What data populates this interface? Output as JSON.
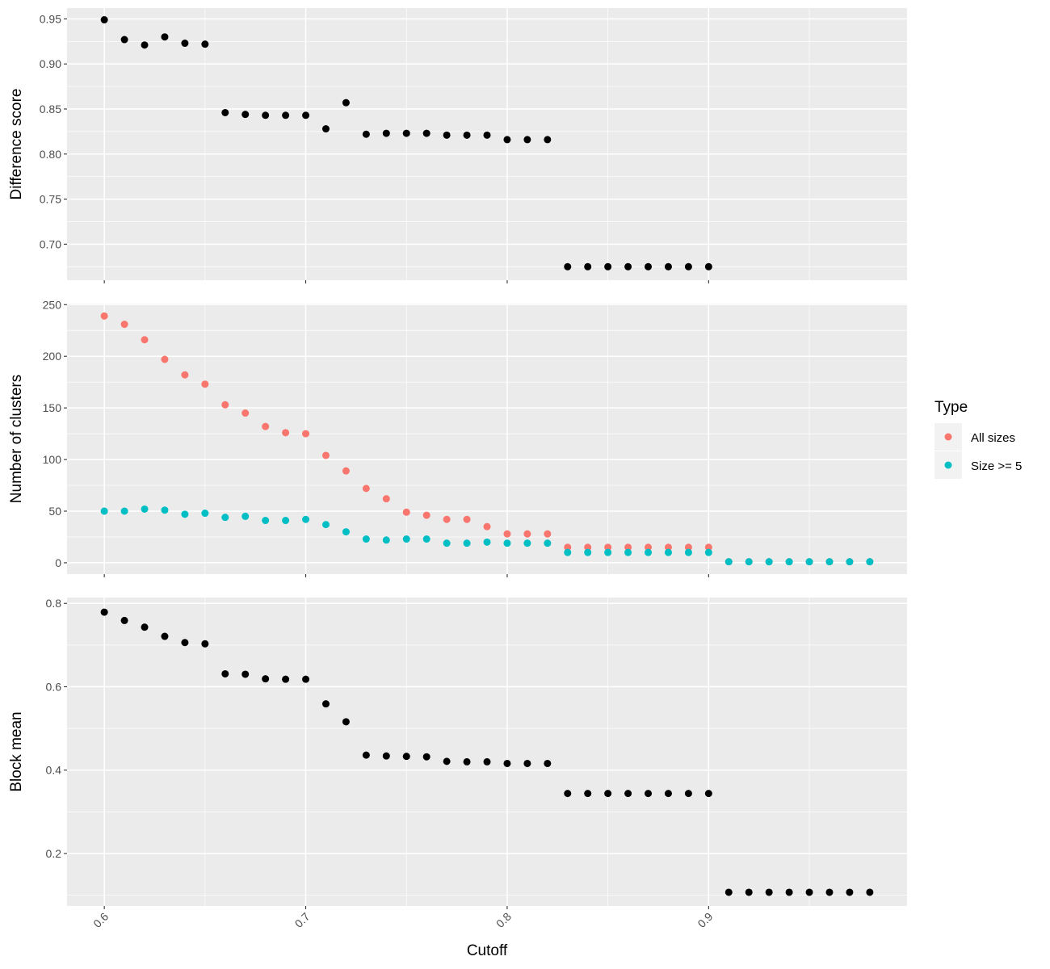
{
  "chart_data": {
    "type": "scatter",
    "xlabel": "Cutoff",
    "x_ticks": [
      "0.6",
      "0.7",
      "0.8",
      "0.9"
    ],
    "xlim": [
      0.5815,
      0.9985
    ],
    "panels": [
      {
        "ylabel": "Difference score",
        "ylim": [
          0.66,
          0.962
        ],
        "y_ticks": [
          "0.70",
          "0.75",
          "0.80",
          "0.85",
          "0.90",
          "0.95"
        ],
        "series": [
          {
            "color": "#000000",
            "x": [
              0.6,
              0.61,
              0.62,
              0.63,
              0.64,
              0.65,
              0.66,
              0.67,
              0.68,
              0.69,
              0.7,
              0.71,
              0.72,
              0.73,
              0.74,
              0.75,
              0.76,
              0.77,
              0.78,
              0.79,
              0.8,
              0.81,
              0.82,
              0.83,
              0.84,
              0.85,
              0.86,
              0.87,
              0.88,
              0.89,
              0.9
            ],
            "y": [
              0.949,
              0.927,
              0.921,
              0.93,
              0.923,
              0.922,
              0.846,
              0.844,
              0.843,
              0.843,
              0.843,
              0.828,
              0.857,
              0.822,
              0.823,
              0.823,
              0.823,
              0.821,
              0.821,
              0.821,
              0.816,
              0.816,
              0.816,
              0.675,
              0.675,
              0.675,
              0.675,
              0.675,
              0.675,
              0.675,
              0.675
            ]
          }
        ]
      },
      {
        "ylabel": "Number of clusters",
        "ylim": [
          -11,
          251
        ],
        "y_ticks": [
          "0",
          "50",
          "100",
          "150",
          "200",
          "250"
        ],
        "legend": {
          "title": "Type",
          "position": "right",
          "entries": [
            {
              "label": "All sizes",
              "color": "#F8766D"
            },
            {
              "label": "Size >= 5",
              "color": "#00BFC4"
            }
          ]
        },
        "series": [
          {
            "name": "All sizes",
            "color": "#F8766D",
            "x": [
              0.6,
              0.61,
              0.62,
              0.63,
              0.64,
              0.65,
              0.66,
              0.67,
              0.68,
              0.69,
              0.7,
              0.71,
              0.72,
              0.73,
              0.74,
              0.75,
              0.76,
              0.77,
              0.78,
              0.79,
              0.8,
              0.81,
              0.82,
              0.83,
              0.84,
              0.85,
              0.86,
              0.87,
              0.88,
              0.89,
              0.9,
              0.91,
              0.92,
              0.93,
              0.94,
              0.95,
              0.96,
              0.97,
              0.98
            ],
            "y": [
              239,
              231,
              216,
              197,
              182,
              173,
              153,
              145,
              132,
              126,
              125,
              104,
              89,
              72,
              62,
              49,
              46,
              42,
              42,
              35,
              28,
              28,
              28,
              15,
              15,
              15,
              15,
              15,
              15,
              15,
              15,
              1,
              1,
              1,
              1,
              1,
              1,
              1,
              1
            ]
          },
          {
            "name": "Size >= 5",
            "color": "#00BFC4",
            "x": [
              0.6,
              0.61,
              0.62,
              0.63,
              0.64,
              0.65,
              0.66,
              0.67,
              0.68,
              0.69,
              0.7,
              0.71,
              0.72,
              0.73,
              0.74,
              0.75,
              0.76,
              0.77,
              0.78,
              0.79,
              0.8,
              0.81,
              0.82,
              0.83,
              0.84,
              0.85,
              0.86,
              0.87,
              0.88,
              0.89,
              0.9,
              0.91,
              0.92,
              0.93,
              0.94,
              0.95,
              0.96,
              0.97,
              0.98
            ],
            "y": [
              50,
              50,
              52,
              51,
              47,
              48,
              44,
              45,
              41,
              41,
              42,
              37,
              30,
              23,
              22,
              23,
              23,
              19,
              19,
              20,
              19,
              19,
              19,
              10,
              10,
              10,
              10,
              10,
              10,
              10,
              10,
              1,
              1,
              1,
              1,
              1,
              1,
              1,
              1
            ]
          }
        ]
      },
      {
        "ylabel": "Block mean",
        "ylim": [
          0.074,
          0.814
        ],
        "y_ticks": [
          "0.2",
          "0.4",
          "0.6",
          "0.8"
        ],
        "series": [
          {
            "color": "#000000",
            "x": [
              0.6,
              0.61,
              0.62,
              0.63,
              0.64,
              0.65,
              0.66,
              0.67,
              0.68,
              0.69,
              0.7,
              0.71,
              0.72,
              0.73,
              0.74,
              0.75,
              0.76,
              0.77,
              0.78,
              0.79,
              0.8,
              0.81,
              0.82,
              0.83,
              0.84,
              0.85,
              0.86,
              0.87,
              0.88,
              0.89,
              0.9,
              0.91,
              0.92,
              0.93,
              0.94,
              0.95,
              0.96,
              0.97,
              0.98
            ],
            "y": [
              0.779,
              0.759,
              0.743,
              0.721,
              0.706,
              0.703,
              0.631,
              0.63,
              0.619,
              0.618,
              0.618,
              0.559,
              0.516,
              0.436,
              0.434,
              0.433,
              0.432,
              0.421,
              0.42,
              0.42,
              0.416,
              0.416,
              0.416,
              0.344,
              0.344,
              0.344,
              0.344,
              0.344,
              0.344,
              0.344,
              0.344,
              0.107,
              0.107,
              0.107,
              0.107,
              0.107,
              0.107,
              0.107,
              0.107
            ]
          }
        ]
      }
    ]
  }
}
